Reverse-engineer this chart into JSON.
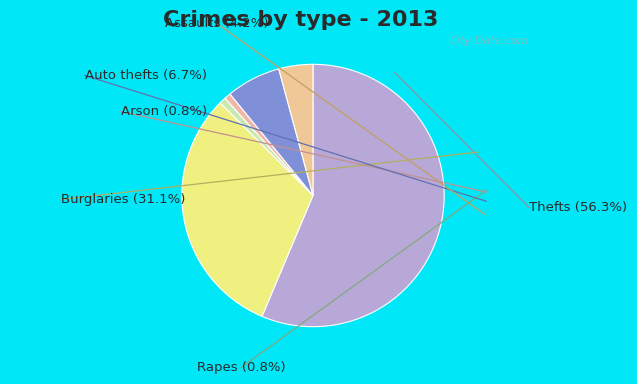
{
  "title": "Crimes by type - 2013",
  "labels": [
    "Thefts",
    "Burglaries",
    "Rapes",
    "Arson",
    "Auto thefts",
    "Assaults"
  ],
  "values": [
    56.3,
    31.1,
    0.8,
    0.8,
    6.7,
    4.2
  ],
  "colors": [
    "#b8a8d8",
    "#f0f080",
    "#c8e8b0",
    "#f0b8a8",
    "#8090d8",
    "#f0c898"
  ],
  "label_texts": [
    "Thefts (56.3%)",
    "Burglaries (31.1%)",
    "Rapes (0.8%)",
    "Arson (0.8%)",
    "Auto thefts (6.7%)",
    "Assaults (4.2%)"
  ],
  "cyan_bg": "#00e8f8",
  "inner_bg": "#d8ede8",
  "title_fontsize": 16,
  "label_fontsize": 9.5,
  "title_color": "#2a2a2a",
  "label_color": "#2a2a2a"
}
